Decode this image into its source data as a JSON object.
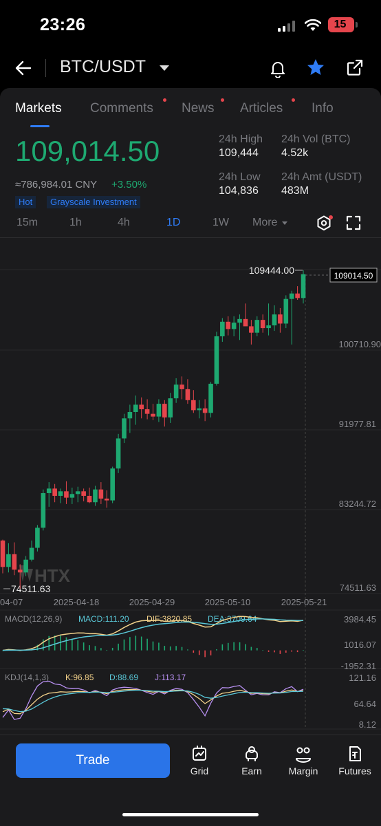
{
  "status_bar": {
    "time": "23:26",
    "battery": "15"
  },
  "header": {
    "pair": "BTC/USDT"
  },
  "tabs": [
    {
      "label": "Markets",
      "active": true,
      "dot": false
    },
    {
      "label": "Comments",
      "active": false,
      "dot": true
    },
    {
      "label": "News",
      "active": false,
      "dot": true
    },
    {
      "label": "Articles",
      "active": false,
      "dot": true
    },
    {
      "label": "Info",
      "active": false,
      "dot": false
    }
  ],
  "ticker": {
    "price": "109,014.50",
    "cny": "≈786,984.01 CNY",
    "change": "+3.50%",
    "tags": [
      "Hot",
      "Grayscale Investment"
    ],
    "high_label": "24h High",
    "high": "109,444",
    "low_label": "24h Low",
    "low": "104,836",
    "vol_label": "24h Vol (BTC)",
    "vol": "4.52k",
    "amt_label": "24h Amt (USDT)",
    "amt": "483M"
  },
  "timeframes": {
    "items": [
      "15m",
      "1h",
      "4h",
      "1D",
      "1W"
    ],
    "active": "1D",
    "more": "More"
  },
  "chart_data": {
    "type": "candlestick",
    "price_axis_labels": [
      "100710.90",
      "91977.81",
      "83244.72",
      "74511.63"
    ],
    "current_price_tag": "109014.50",
    "high_marker": "109444.00",
    "low_marker": "74511.63",
    "date_labels": [
      "04-07",
      "2025-04-18",
      "2025-04-29",
      "2025-05-10",
      "2025-05-21"
    ],
    "watermark": "HTX",
    "candles": [
      [
        79800,
        79900,
        76200,
        76900
      ],
      [
        76900,
        79500,
        76300,
        78300
      ],
      [
        78300,
        79600,
        76000,
        76600
      ],
      [
        76600,
        77200,
        74511.63,
        76300
      ],
      [
        76300,
        78100,
        75900,
        77700
      ],
      [
        77700,
        79800,
        77500,
        79000
      ],
      [
        79000,
        81500,
        78600,
        81200
      ],
      [
        81200,
        85400,
        80900,
        85000
      ],
      [
        85000,
        86200,
        83500,
        85500
      ],
      [
        85500,
        86000,
        84000,
        84700
      ],
      [
        84700,
        85500,
        83900,
        85200
      ],
      [
        85200,
        86300,
        83800,
        84500
      ],
      [
        84500,
        85600,
        83800,
        84900
      ],
      [
        84900,
        85700,
        84000,
        85200
      ],
      [
        85200,
        85500,
        84100,
        84700
      ],
      [
        84700,
        85600,
        83900,
        84000
      ],
      [
        84000,
        85800,
        83600,
        85400
      ],
      [
        85400,
        86200,
        83800,
        84400
      ],
      [
        84400,
        85300,
        83400,
        84200
      ],
      [
        84200,
        87900,
        83900,
        87700
      ],
      [
        87700,
        91500,
        87200,
        91000
      ],
      [
        91000,
        93700,
        90500,
        93200
      ],
      [
        93200,
        94700,
        91600,
        93900
      ],
      [
        93900,
        95700,
        92500,
        94700
      ],
      [
        94700,
        95500,
        93200,
        94200
      ],
      [
        94200,
        95300,
        93100,
        93700
      ],
      [
        93700,
        94800,
        93000,
        93400
      ],
      [
        93400,
        95300,
        92800,
        94800
      ],
      [
        94800,
        95200,
        92300,
        93300
      ],
      [
        93300,
        96000,
        92700,
        95400
      ],
      [
        95400,
        97600,
        94900,
        96900
      ],
      [
        96900,
        97800,
        95300,
        96400
      ],
      [
        96400,
        97500,
        94800,
        95200
      ],
      [
        95200,
        96300,
        93800,
        94100
      ],
      [
        94100,
        95200,
        93200,
        94300
      ],
      [
        94300,
        95300,
        92900,
        93800
      ],
      [
        93800,
        97200,
        93300,
        97000
      ],
      [
        97000,
        102700,
        96800,
        102200
      ],
      [
        102200,
        104200,
        101600,
        103800
      ],
      [
        103800,
        104400,
        102300,
        103000
      ],
      [
        103000,
        104400,
        102200,
        103700
      ],
      [
        103700,
        104600,
        101800,
        104100
      ],
      [
        104100,
        105800,
        103500,
        103300
      ],
      [
        103300,
        104000,
        101300,
        102600
      ],
      [
        102600,
        104400,
        102200,
        104000
      ],
      [
        104000,
        104600,
        102600,
        103100
      ],
      [
        103100,
        105800,
        102300,
        103400
      ],
      [
        103400,
        105600,
        102800,
        104600
      ],
      [
        104600,
        105300,
        102600,
        103600
      ],
      [
        103600,
        106700,
        103100,
        106300
      ],
      [
        106300,
        107200,
        101300,
        106900
      ],
      [
        106900,
        107700,
        106200,
        106400
      ],
      [
        106400,
        109444,
        105800,
        109014.5
      ]
    ],
    "macd": {
      "label": "MACD(12,26,9)",
      "macd": "MACD:111.20",
      "dif": "DIF:3820.85",
      "dea": "DEA:3709.64",
      "axis": [
        "3984.45",
        "1016.07",
        "-1952.31"
      ]
    },
    "kdj": {
      "label": "KDJ(14,1,3)",
      "k": "K:96.85",
      "d": "D:88.69",
      "j": "J:113.17",
      "axis": [
        "121.16",
        "64.64",
        "8.12"
      ]
    }
  },
  "bottom_bar": {
    "trade": "Trade",
    "items": [
      "Grid",
      "Earn",
      "Margin",
      "Futures"
    ]
  },
  "colors": {
    "up": "#1ea971",
    "down": "#e5454c",
    "accent": "#2f7cf6",
    "dif": "#f2d18a",
    "dea": "#5ac8d8",
    "j": "#b78ff0"
  }
}
